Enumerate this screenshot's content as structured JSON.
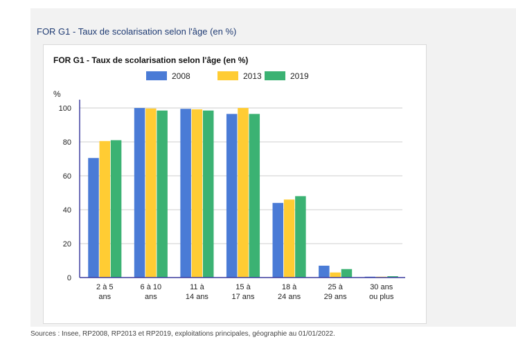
{
  "panel": {
    "title": "FOR G1 - Taux de scolarisation selon l'âge (en %)"
  },
  "sources": "Sources : Insee, RP2008, RP2013 et RP2019, exploitations principales, géographie au 01/01/2022.",
  "colors": {
    "series_2008": "#4a7bd6",
    "series_2013": "#ffcc33",
    "series_2019": "#3bb273",
    "grid": "#cccccc",
    "axis": "#3b3b9e"
  },
  "chart_data": {
    "type": "bar",
    "title": "FOR G1 - Taux de scolarisation selon l'âge (en %)",
    "ylabel": "%",
    "xlabel": "",
    "ylim": [
      0,
      100
    ],
    "yticks": [
      0,
      20,
      40,
      60,
      80,
      100
    ],
    "grid": true,
    "legend_position": "top",
    "categories": [
      [
        "2 à 5",
        "ans"
      ],
      [
        "6 à 10",
        "ans"
      ],
      [
        "11 à",
        "14 ans"
      ],
      [
        "15 à",
        "17 ans"
      ],
      [
        "18 à",
        "24 ans"
      ],
      [
        "25 à",
        "29 ans"
      ],
      [
        "30 ans",
        "ou plus"
      ]
    ],
    "series": [
      {
        "name": "2008",
        "color": "#4a7bd6",
        "values": [
          70.5,
          100,
          99.5,
          96.5,
          44,
          7,
          0.5
        ]
      },
      {
        "name": "2013",
        "color": "#ffcc33",
        "values": [
          80.5,
          99.7,
          99.2,
          100,
          46,
          3,
          0.5
        ]
      },
      {
        "name": "2019",
        "color": "#3bb273",
        "values": [
          81,
          98.5,
          98.5,
          96.5,
          48,
          5,
          0.8
        ]
      }
    ]
  }
}
